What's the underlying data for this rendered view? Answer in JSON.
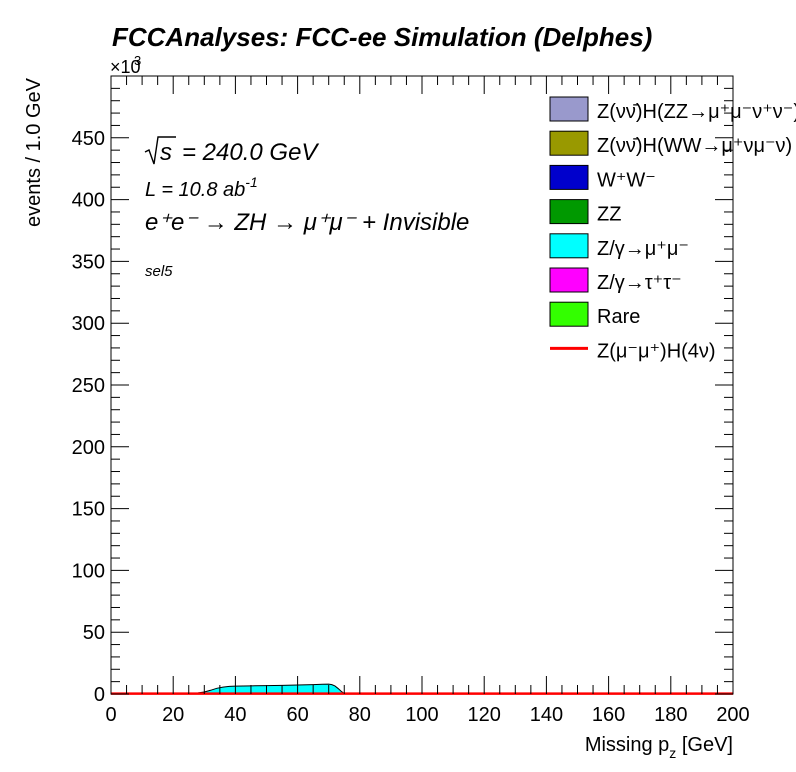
{
  "chart_data": {
    "type": "area",
    "title": "FCCAnalyses: FCC-ee Simulation (Delphes)",
    "xlabel_main": "Missing p",
    "xlabel_sub": "z",
    "xlabel_unit": " [GeV]",
    "ylabel": "events / 1.0 GeV",
    "y_multiplier": "×10",
    "y_multiplier_exp": "3",
    "xlim": [
      0,
      200
    ],
    "ylim": [
      0,
      500
    ],
    "x_ticks": [
      0,
      20,
      40,
      60,
      80,
      100,
      120,
      140,
      160,
      180,
      200
    ],
    "y_ticks": [
      0,
      50,
      100,
      150,
      200,
      250,
      300,
      350,
      400,
      450
    ],
    "annotations": {
      "sqrt_s": "= 240.0 GeV",
      "lumi_main": "L = 10.8 ab",
      "lumi_exp": "-1",
      "process": "e⁺e⁻ → ZH → μ⁺μ⁻ + Invisible",
      "selection": "sel5"
    },
    "legend_position": "top-right",
    "series": [
      {
        "name": "Z(νν̄)H(ZZ→μ⁺μ⁻ν⁺ν⁻)",
        "color": "#9999cc",
        "kind": "fill",
        "values": []
      },
      {
        "name": "Z(νν̄)H(WW→μ⁺νμ⁻ν)",
        "color": "#999900",
        "kind": "fill",
        "values": []
      },
      {
        "name": "W⁺W⁻",
        "color": "#0000cc",
        "kind": "fill",
        "values": []
      },
      {
        "name": "ZZ",
        "color": "#009900",
        "kind": "fill",
        "values": []
      },
      {
        "name": "Z/γ→μ⁺μ⁻",
        "color": "#00ffff",
        "kind": "fill",
        "x": [
          0,
          10,
          20,
          25,
          28,
          30,
          32,
          34,
          36,
          38,
          40,
          45,
          50,
          55,
          60,
          65,
          68,
          70,
          71,
          72,
          73,
          74,
          75,
          80,
          100,
          150,
          200
        ],
        "values": [
          0.3,
          0.3,
          0.3,
          0.5,
          0.9,
          1.6,
          3.0,
          4.6,
          5.6,
          6.2,
          6.4,
          6.6,
          6.8,
          7.0,
          7.3,
          7.6,
          7.9,
          8.0,
          7.6,
          6.5,
          4.5,
          2.2,
          0.4,
          0.2,
          0.2,
          0.2,
          0.2
        ]
      },
      {
        "name": "Z/γ→τ⁺τ⁻",
        "color": "#ff00ff",
        "kind": "fill",
        "values": []
      },
      {
        "name": "Rare",
        "color": "#33ff00",
        "kind": "fill",
        "values": []
      },
      {
        "name": "Z(μ⁻μ⁺)H(4ν)",
        "color": "#ff0000",
        "kind": "line",
        "x": [
          0,
          20,
          40,
          60,
          70,
          75,
          80,
          100,
          150,
          200
        ],
        "values": [
          0.3,
          0.3,
          0.3,
          0.3,
          0.3,
          0.3,
          0.3,
          0.3,
          0.3,
          0.3
        ]
      }
    ]
  }
}
